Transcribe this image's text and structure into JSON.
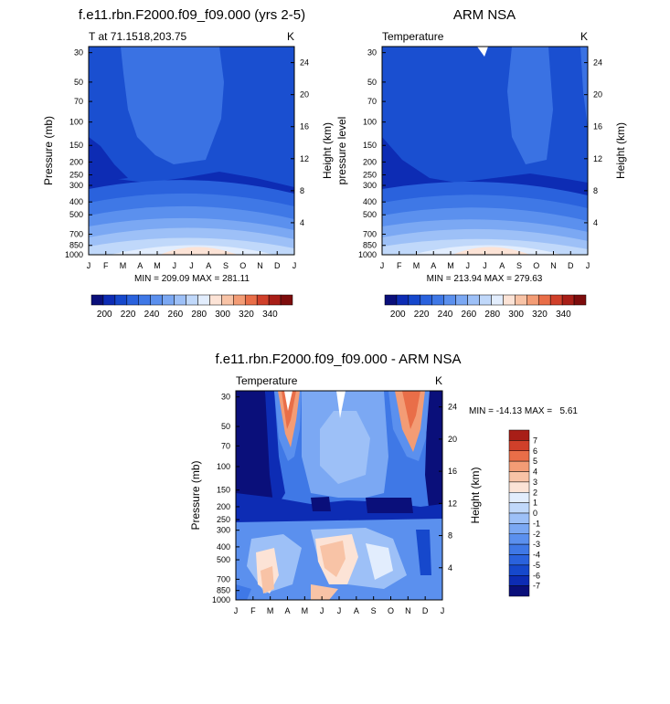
{
  "chart_data": [
    {
      "type": "heatmap",
      "title": "f.e11.rbn.F2000.f09_f09.000 (yrs 2-5)",
      "left_title": "T at 71.1518,203.75",
      "right_title": "K",
      "ylabel": "Pressure (mb)",
      "ylabel_right": "Height (km)",
      "x_ticks": [
        "J",
        "F",
        "M",
        "A",
        "M",
        "J",
        "J",
        "A",
        "S",
        "O",
        "N",
        "D",
        "J"
      ],
      "y_ticks": [
        "30",
        "50",
        "70",
        "100",
        "150",
        "200",
        "250",
        "300",
        "400",
        "500",
        "700",
        "850",
        "1000"
      ],
      "y_right_ticks": [
        "4",
        "8",
        "12",
        "16",
        "20",
        "24"
      ],
      "stats": "MIN = 209.09 MAX = 281.11",
      "colorbar_ticks": [
        "200",
        "220",
        "240",
        "260",
        "280",
        "300",
        "320",
        "340"
      ]
    },
    {
      "type": "heatmap",
      "title": "ARM NSA",
      "left_title": "Temperature",
      "right_title": "K",
      "ylabel": "pressure level",
      "ylabel_right": "Height (km)",
      "x_ticks": [
        "J",
        "F",
        "M",
        "A",
        "M",
        "J",
        "J",
        "A",
        "S",
        "O",
        "N",
        "D",
        "J"
      ],
      "y_ticks": [
        "30",
        "50",
        "70",
        "100",
        "150",
        "200",
        "250",
        "300",
        "400",
        "500",
        "700",
        "850",
        "1000"
      ],
      "y_right_ticks": [
        "4",
        "8",
        "12",
        "16",
        "20",
        "24"
      ],
      "stats": "MIN = 213.94 MAX = 279.63",
      "colorbar_ticks": [
        "200",
        "220",
        "240",
        "260",
        "280",
        "300",
        "320",
        "340"
      ]
    },
    {
      "type": "heatmap",
      "title": "f.e11.rbn.F2000.f09_f09.000 - ARM NSA",
      "left_title": "Temperature",
      "right_title": "K",
      "ylabel": "Pressure (mb)",
      "ylabel_right": "Height (km)",
      "x_ticks": [
        "J",
        "F",
        "M",
        "A",
        "M",
        "J",
        "J",
        "A",
        "S",
        "O",
        "N",
        "D",
        "J"
      ],
      "y_ticks": [
        "30",
        "50",
        "70",
        "100",
        "150",
        "200",
        "250",
        "300",
        "400",
        "500",
        "700",
        "850",
        "1000"
      ],
      "y_right_ticks": [
        "4",
        "8",
        "12",
        "16",
        "20",
        "24"
      ],
      "stats": "MIN = -14.13 MAX =   5.61",
      "colorbar_ticks": [
        "7",
        "6",
        "5",
        "4",
        "3",
        "2",
        "1",
        "0",
        "-1",
        "-2",
        "-3",
        "-4",
        "-5",
        "-6",
        "-7"
      ]
    }
  ],
  "colors": {
    "temp_scale": [
      "#0a0f7a",
      "#0d2cb4",
      "#1648cc",
      "#2a62dd",
      "#3f78e6",
      "#5b90ee",
      "#7ba8f3",
      "#9dc0f7",
      "#c0d8fa",
      "#e2edfd",
      "#fce3d6",
      "#f8c3a6",
      "#f39c75",
      "#e96e48",
      "#d0402a",
      "#a81e17",
      "#7d0c0c"
    ],
    "diff_scale": [
      "#0a0f7a",
      "#0d2cb4",
      "#1648cc",
      "#2a62dd",
      "#3f78e6",
      "#5b90ee",
      "#7ba8f3",
      "#9dc0f7",
      "#c0d8fa",
      "#e2edfd",
      "#fce3d6",
      "#f8c3a6",
      "#f39c75",
      "#e96e48",
      "#d0402a",
      "#a81e17"
    ]
  }
}
